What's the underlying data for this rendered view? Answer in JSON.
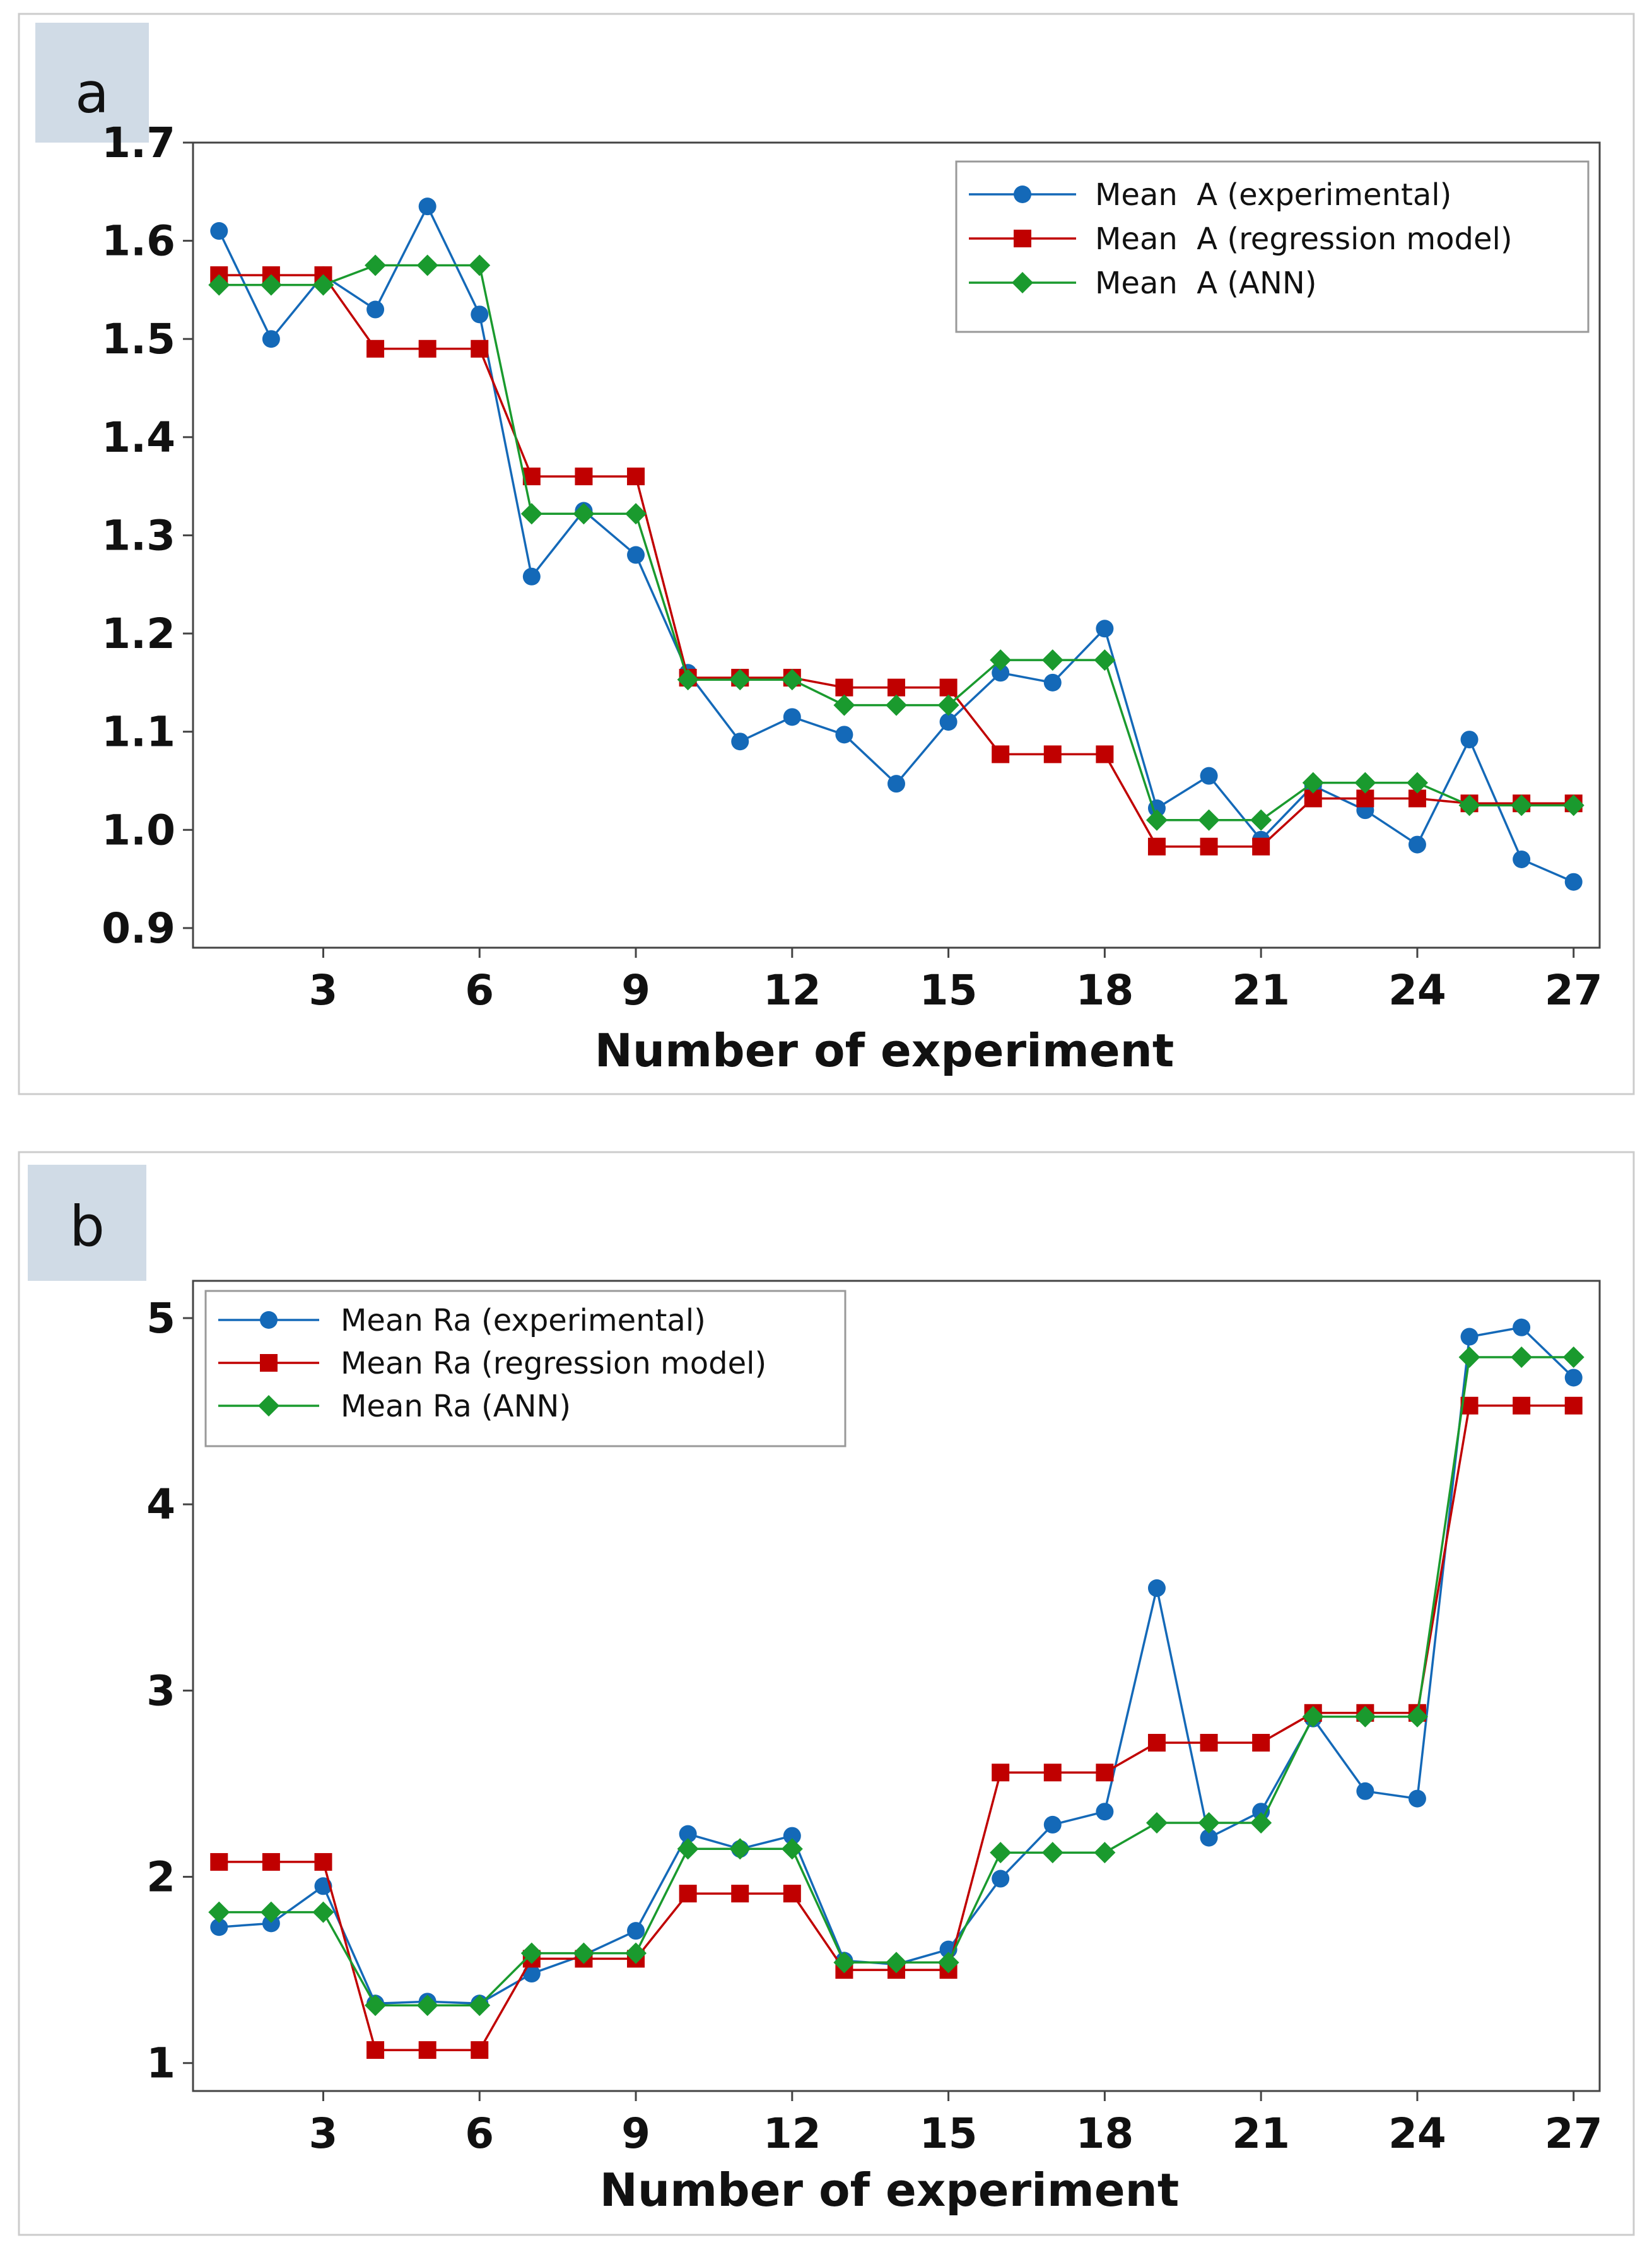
{
  "colors": {
    "experimental": "#1469b8",
    "regression": "#c00000",
    "ann": "#1a9a2e",
    "panel_label_bg": "#d0dbe6",
    "frame": "#cccccc"
  },
  "chart_data": [
    {
      "type": "line",
      "panel_label": "a",
      "xlabel": "Number of experiment",
      "ylabel": "",
      "x": [
        1,
        2,
        3,
        4,
        5,
        6,
        7,
        8,
        9,
        10,
        11,
        12,
        13,
        14,
        15,
        16,
        17,
        18,
        19,
        20,
        21,
        22,
        23,
        24,
        25,
        26,
        27
      ],
      "xticks": [
        3,
        6,
        9,
        12,
        15,
        18,
        21,
        24,
        27
      ],
      "xtick_labels": [
        "3",
        "6",
        "9",
        "12",
        "15",
        "18",
        "21",
        "24",
        "27"
      ],
      "xlim": [
        0.5,
        27.5
      ],
      "yticks": [
        0.9,
        1.0,
        1.1,
        1.2,
        1.3,
        1.4,
        1.5,
        1.6,
        1.7
      ],
      "ytick_labels": [
        "0.9",
        "1.0",
        "1.1",
        "1.2",
        "1.3",
        "1.4",
        "1.5",
        "1.6",
        "1.7"
      ],
      "ylim": [
        0.88,
        1.7
      ],
      "legend_position": "top-right",
      "series": [
        {
          "name": "Mean  A (experimental)",
          "marker": "circle",
          "color": "#1469b8",
          "values": [
            1.61,
            1.5,
            1.565,
            1.53,
            1.635,
            1.525,
            1.258,
            1.325,
            1.28,
            1.16,
            1.09,
            1.115,
            1.097,
            1.047,
            1.11,
            1.16,
            1.15,
            1.205,
            1.022,
            1.055,
            0.99,
            1.045,
            1.02,
            0.985,
            1.092,
            0.97,
            0.947
          ]
        },
        {
          "name": "Mean  A (regression model)",
          "marker": "square",
          "color": "#c00000",
          "values": [
            1.565,
            1.565,
            1.565,
            1.49,
            1.49,
            1.49,
            1.36,
            1.36,
            1.36,
            1.155,
            1.155,
            1.155,
            1.145,
            1.145,
            1.145,
            1.077,
            1.077,
            1.077,
            0.983,
            0.983,
            0.983,
            1.032,
            1.032,
            1.032,
            1.027,
            1.027,
            1.027
          ]
        },
        {
          "name": "Mean  A (ANN)",
          "marker": "diamond",
          "color": "#1a9a2e",
          "values": [
            1.555,
            1.555,
            1.555,
            1.575,
            1.575,
            1.575,
            1.322,
            1.322,
            1.322,
            1.153,
            1.153,
            1.153,
            1.127,
            1.127,
            1.127,
            1.173,
            1.173,
            1.173,
            1.01,
            1.01,
            1.01,
            1.048,
            1.048,
            1.048,
            1.025,
            1.025,
            1.025
          ]
        }
      ]
    },
    {
      "type": "line",
      "panel_label": "b",
      "xlabel": "Number of experiment",
      "ylabel": "",
      "x": [
        1,
        2,
        3,
        4,
        5,
        6,
        7,
        8,
        9,
        10,
        11,
        12,
        13,
        14,
        15,
        16,
        17,
        18,
        19,
        20,
        21,
        22,
        23,
        24,
        25,
        26,
        27
      ],
      "xticks": [
        3,
        6,
        9,
        12,
        15,
        18,
        21,
        24,
        27
      ],
      "xtick_labels": [
        "3",
        "6",
        "9",
        "12",
        "15",
        "18",
        "21",
        "24",
        "27"
      ],
      "xlim": [
        0.5,
        27.5
      ],
      "yticks": [
        1,
        2,
        3,
        4,
        5
      ],
      "ytick_labels": [
        "1",
        "2",
        "3",
        "4",
        "5"
      ],
      "ylim": [
        0.85,
        5.2
      ],
      "legend_position": "top-left",
      "series": [
        {
          "name": "Mean Ra (experimental)",
          "marker": "circle",
          "color": "#1469b8",
          "values": [
            1.73,
            1.75,
            1.95,
            1.32,
            1.33,
            1.32,
            1.48,
            1.58,
            1.71,
            2.23,
            2.15,
            2.22,
            1.55,
            1.53,
            1.61,
            1.99,
            2.28,
            2.35,
            3.55,
            2.21,
            2.35,
            2.85,
            2.46,
            2.42,
            4.9,
            4.95,
            4.68
          ]
        },
        {
          "name": "Mean Ra (regression model)",
          "marker": "square",
          "color": "#c00000",
          "values": [
            2.08,
            2.08,
            2.08,
            1.07,
            1.07,
            1.07,
            1.56,
            1.56,
            1.56,
            1.91,
            1.91,
            1.91,
            1.5,
            1.5,
            1.5,
            2.56,
            2.56,
            2.56,
            2.72,
            2.72,
            2.72,
            2.88,
            2.88,
            2.88,
            4.53,
            4.53,
            4.53
          ]
        },
        {
          "name": "Mean Ra (ANN)",
          "marker": "diamond",
          "color": "#1a9a2e",
          "values": [
            1.81,
            1.81,
            1.81,
            1.31,
            1.31,
            1.31,
            1.59,
            1.59,
            1.59,
            2.15,
            2.15,
            2.15,
            1.54,
            1.54,
            1.54,
            2.13,
            2.13,
            2.13,
            2.29,
            2.29,
            2.29,
            2.86,
            2.86,
            2.86,
            4.79,
            4.79,
            4.79
          ]
        }
      ]
    }
  ]
}
